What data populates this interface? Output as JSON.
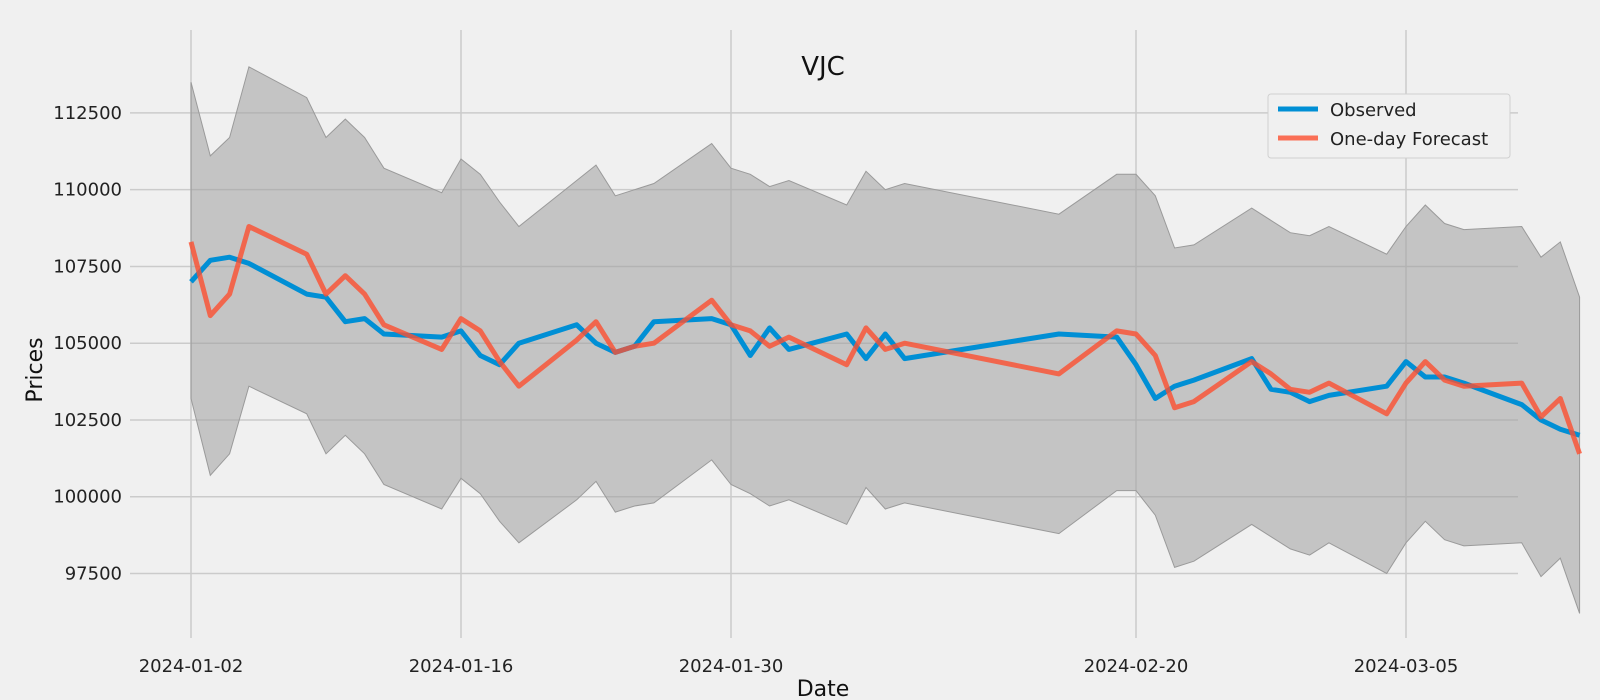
{
  "chart_data": {
    "type": "line",
    "title": "VJC",
    "xlabel": "Date",
    "ylabel": "Prices",
    "x": [
      "2024-01-02",
      "2024-01-03",
      "2024-01-04",
      "2024-01-05",
      "2024-01-08",
      "2024-01-09",
      "2024-01-10",
      "2024-01-11",
      "2024-01-12",
      "2024-01-15",
      "2024-01-16",
      "2024-01-17",
      "2024-01-18",
      "2024-01-19",
      "2024-01-22",
      "2024-01-23",
      "2024-01-24",
      "2024-01-25",
      "2024-01-26",
      "2024-01-29",
      "2024-01-30",
      "2024-01-31",
      "2024-02-01",
      "2024-02-02",
      "2024-02-05",
      "2024-02-06",
      "2024-02-07",
      "2024-02-08",
      "2024-02-16",
      "2024-02-19",
      "2024-02-20",
      "2024-02-21",
      "2024-02-22",
      "2024-02-23",
      "2024-02-26",
      "2024-02-27",
      "2024-02-28",
      "2024-02-29",
      "2024-03-01",
      "2024-03-04",
      "2024-03-05",
      "2024-03-06",
      "2024-03-07",
      "2024-03-08",
      "2024-03-11",
      "2024-03-12",
      "2024-03-13",
      "2024-03-14"
    ],
    "x_ticks": [
      "2024-01-02",
      "2024-01-16",
      "2024-01-30",
      "2024-02-20",
      "2024-03-05"
    ],
    "y_ticks": [
      97500,
      100000,
      102500,
      105000,
      107500,
      110000,
      112500
    ],
    "ylim": [
      95400,
      115200
    ],
    "grid": true,
    "legend_position": "top-right",
    "series": [
      {
        "name": "Observed",
        "color": "#008fd5",
        "values": [
          107000,
          107700,
          107800,
          107600,
          106600,
          106500,
          105700,
          105800,
          105300,
          105200,
          105400,
          104600,
          104300,
          105000,
          105600,
          105000,
          104700,
          104900,
          105700,
          105800,
          105600,
          104600,
          105500,
          104800,
          105300,
          104500,
          105300,
          104500,
          105300,
          105200,
          104300,
          103200,
          103600,
          103800,
          104500,
          103500,
          103400,
          103100,
          103300,
          103600,
          104400,
          103900,
          103900,
          103700,
          103000,
          102500,
          102200,
          102000
        ]
      },
      {
        "name": "One-day Forecast",
        "color": "#fc4f30",
        "values": [
          108300,
          105900,
          106600,
          108800,
          107900,
          106600,
          107200,
          106600,
          105600,
          104800,
          105800,
          105400,
          104400,
          103600,
          105100,
          105700,
          104700,
          104900,
          105000,
          106400,
          105600,
          105400,
          104900,
          105200,
          104300,
          105500,
          104800,
          105000,
          104000,
          105400,
          105300,
          104600,
          102900,
          103100,
          104400,
          104000,
          103500,
          103400,
          103700,
          102700,
          103700,
          104400,
          103800,
          103600,
          103700,
          102600,
          103200,
          101400
        ]
      }
    ],
    "band": {
      "color": "#a0a0a0",
      "upper": [
        113500,
        111100,
        111700,
        114000,
        113000,
        111700,
        112300,
        111700,
        110700,
        109900,
        111000,
        110500,
        109600,
        108800,
        110300,
        110800,
        109800,
        110000,
        110200,
        111500,
        110700,
        110500,
        110100,
        110300,
        109500,
        110600,
        110000,
        110200,
        109200,
        110500,
        110500,
        109800,
        108100,
        108200,
        109400,
        109000,
        108600,
        108500,
        108800,
        107900,
        108800,
        109500,
        108900,
        108700,
        108800,
        107800,
        108300,
        106500
      ],
      "lower": [
        103200,
        100700,
        101400,
        103600,
        102700,
        101400,
        102000,
        101400,
        100400,
        99600,
        100600,
        100100,
        99200,
        98500,
        99900,
        100500,
        99500,
        99700,
        99800,
        101200,
        100400,
        100100,
        99700,
        99900,
        99100,
        100300,
        99600,
        99800,
        98800,
        100200,
        100200,
        99400,
        97700,
        97900,
        99100,
        98700,
        98300,
        98100,
        98500,
        97500,
        98500,
        99200,
        98600,
        98400,
        98500,
        97400,
        98000,
        96200
      ]
    }
  }
}
